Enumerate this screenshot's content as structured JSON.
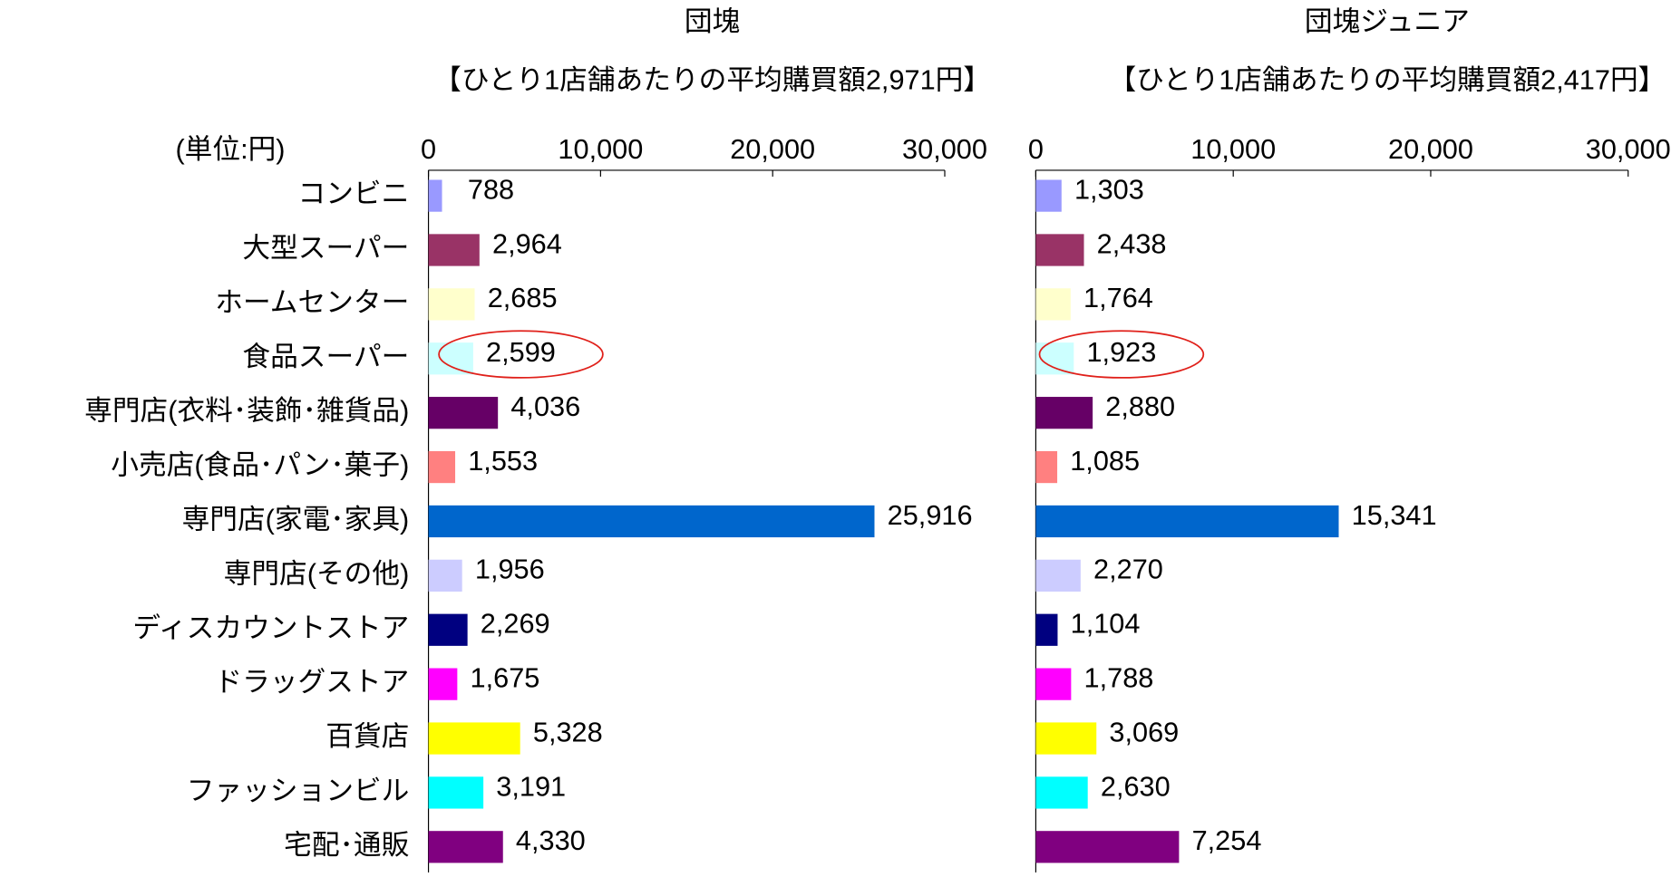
{
  "chart_data": [
    {
      "type": "bar",
      "orientation": "horizontal",
      "title": "団塊",
      "subtitle": "【ひとり1店舗あたりの平均購買額2,971円】",
      "unit_label": "(単位:円)",
      "categories": [
        "コンビニ",
        "大型スーパー",
        "ホームセンター",
        "食品スーパー",
        "専門店(衣料･装飾･雑貨品)",
        "小売店(食品･パン･菓子)",
        "専門店(家電･家具)",
        "専門店(その他)",
        "ディスカウントストア",
        "ドラッグストア",
        "百貨店",
        "ファッションビル",
        "宅配･通販"
      ],
      "values": [
        788,
        2964,
        2685,
        2599,
        4036,
        1553,
        25916,
        1956,
        2269,
        1675,
        5328,
        3191,
        4330
      ],
      "value_labels": [
        "788",
        "2,964",
        "2,685",
        "2,599",
        "4,036",
        "1,553",
        "25,916",
        "1,956",
        "2,269",
        "1,675",
        "5,328",
        "3,191",
        "4,330"
      ],
      "colors": [
        "#9999ff",
        "#993366",
        "#ffffcc",
        "#ccffff",
        "#660066",
        "#ff8080",
        "#0066cc",
        "#ccccff",
        "#000080",
        "#ff00ff",
        "#ffff00",
        "#00ffff",
        "#800080"
      ],
      "xlim": [
        0,
        30000
      ],
      "xticks": [
        0,
        {
          "value": 10000,
          "label": "10,000"
        },
        {
          "value": 20000,
          "label": "20,000"
        },
        {
          "value": 30000,
          "label": "30,000"
        }
      ],
      "highlight_index": 3
    },
    {
      "type": "bar",
      "orientation": "horizontal",
      "title": "団塊ジュニア",
      "subtitle": "【ひとり1店舗あたりの平均購買額2,417円】",
      "values": [
        1303,
        2438,
        1764,
        1923,
        2880,
        1085,
        15341,
        2270,
        1104,
        1788,
        3069,
        2630,
        7254
      ],
      "value_labels": [
        "1,303",
        "2,438",
        "1,764",
        "1,923",
        "2,880",
        "1,085",
        "15,341",
        "2,270",
        "1,104",
        "1,788",
        "3,069",
        "2,630",
        "7,254"
      ],
      "colors": [
        "#9999ff",
        "#993366",
        "#ffffcc",
        "#ccffff",
        "#660066",
        "#ff8080",
        "#0066cc",
        "#ccccff",
        "#000080",
        "#ff00ff",
        "#ffff00",
        "#00ffff",
        "#800080"
      ],
      "xlim": [
        0,
        30000
      ],
      "xticks": [
        0,
        {
          "value": 10000,
          "label": "10,000"
        },
        {
          "value": 20000,
          "label": "20,000"
        },
        {
          "value": 30000,
          "label": "30,000"
        }
      ],
      "highlight_index": 3
    }
  ]
}
